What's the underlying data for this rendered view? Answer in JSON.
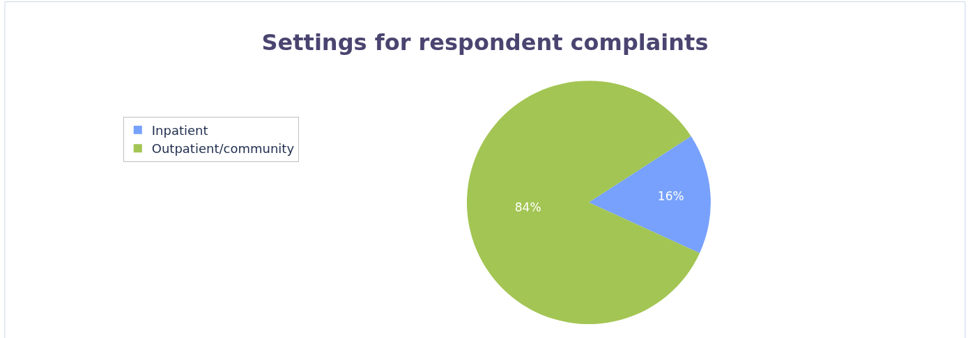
{
  "chart_data": {
    "type": "pie",
    "title": "Settings for respondent complaints",
    "categories": [
      "Inpatient",
      "Outpatient/community"
    ],
    "values": [
      16,
      84
    ],
    "colors": [
      "#77a1fc",
      "#a3c553"
    ],
    "value_labels": [
      "16%",
      "84%"
    ],
    "legend": "top left"
  }
}
